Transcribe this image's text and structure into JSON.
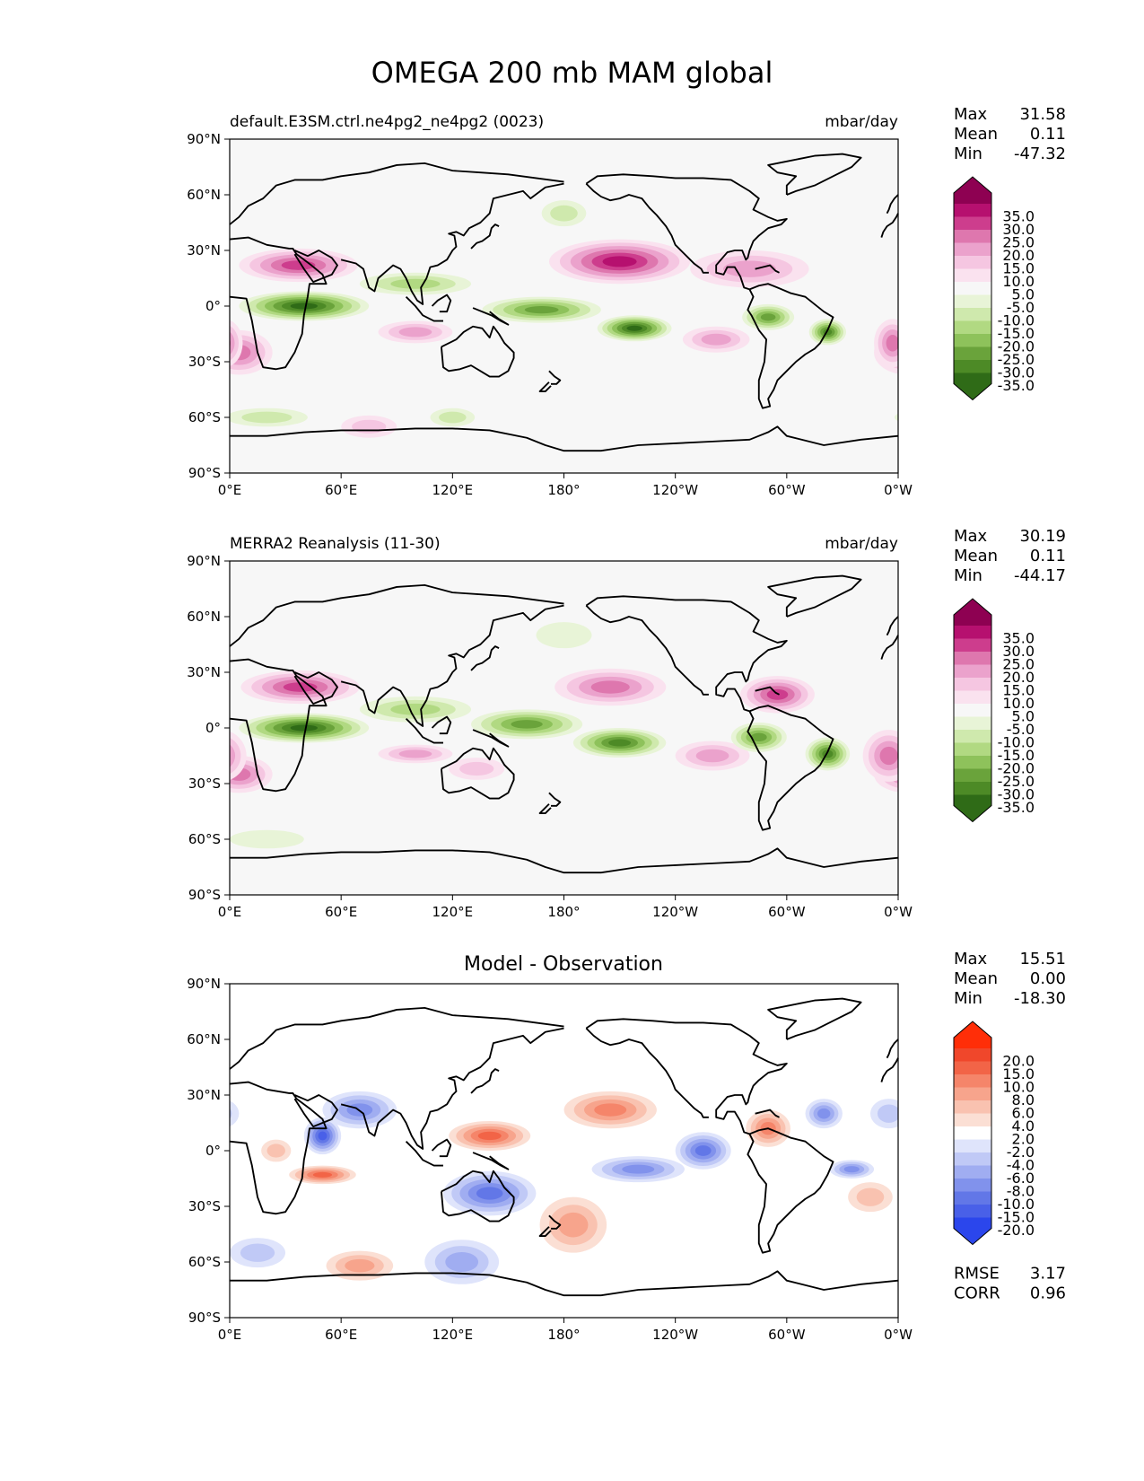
{
  "title": "OMEGA 200 mb MAM global",
  "xticks": [
    "0°E",
    "60°E",
    "120°E",
    "180°",
    "120°W",
    "60°W",
    "0°W"
  ],
  "yticks": [
    "90°N",
    "60°N",
    "30°N",
    "0°",
    "30°S",
    "60°S",
    "90°S"
  ],
  "panels": [
    {
      "id": "model",
      "left_title": "default.E3SM.ctrl.ne4pg2_ne4pg2 (0023)",
      "center_title": "",
      "units": "mbar/day",
      "stats": [
        {
          "label": "Max",
          "value": "31.58"
        },
        {
          "label": "Mean",
          "value": "0.11"
        },
        {
          "label": "Min",
          "value": "-47.32"
        }
      ],
      "extra_stats": [],
      "colorbar": {
        "labels": [
          "35.0",
          "30.0",
          "25.0",
          "20.0",
          "15.0",
          "10.0",
          "5.0",
          "-5.0",
          "-10.0",
          "-15.0",
          "-20.0",
          "-25.0",
          "-30.0",
          "-35.0"
        ],
        "colors": [
          "#8e0152",
          "#b6106f",
          "#cd3d8d",
          "#de77ae",
          "#eba2cc",
          "#f5c6e1",
          "#fae2ef",
          "#f7f7f7",
          "#e8f4d7",
          "#cfe9ad",
          "#b1d982",
          "#8ec25b",
          "#6aa33b",
          "#4d8a26",
          "#2f6b17",
          "#276419"
        ]
      },
      "features": [
        {
          "type": "pos",
          "lon": 37,
          "lat": 22,
          "rlon": 32,
          "rlat": 9,
          "value": 25
        },
        {
          "type": "pos",
          "lon": 100,
          "lat": -14,
          "rlon": 20,
          "rlat": 6,
          "value": 18
        },
        {
          "type": "pos",
          "lon": 210,
          "lat": 24,
          "rlon": 38,
          "rlat": 12,
          "value": 30
        },
        {
          "type": "pos",
          "lon": 280,
          "lat": 20,
          "rlon": 32,
          "rlat": 10,
          "value": 15
        },
        {
          "type": "pos",
          "lon": 5,
          "lat": -25,
          "rlon": 18,
          "rlat": 12,
          "value": 20
        },
        {
          "type": "pos",
          "lon": 262,
          "lat": -18,
          "rlon": 18,
          "rlat": 7,
          "value": 18
        },
        {
          "type": "pos",
          "lon": 357,
          "lat": -20,
          "rlon": 10,
          "rlat": 13,
          "value": 20
        },
        {
          "type": "pos",
          "lon": 75,
          "lat": -65,
          "rlon": 15,
          "rlat": 6,
          "value": 10
        },
        {
          "type": "neg",
          "lon": 40,
          "lat": 0,
          "rlon": 35,
          "rlat": 8,
          "value": -38
        },
        {
          "type": "neg",
          "lon": 100,
          "lat": 12,
          "rlon": 30,
          "rlat": 6,
          "value": -15
        },
        {
          "type": "neg",
          "lon": 168,
          "lat": -2,
          "rlon": 32,
          "rlat": 7,
          "value": -25
        },
        {
          "type": "neg",
          "lon": 218,
          "lat": -12,
          "rlon": 20,
          "rlat": 7,
          "value": -35
        },
        {
          "type": "neg",
          "lon": 290,
          "lat": -6,
          "rlon": 14,
          "rlat": 7,
          "value": -25
        },
        {
          "type": "neg",
          "lon": 322,
          "lat": -14,
          "rlon": 10,
          "rlat": 7,
          "value": -30
        },
        {
          "type": "neg",
          "lon": 20,
          "lat": -60,
          "rlon": 22,
          "rlat": 5,
          "value": -10
        },
        {
          "type": "neg",
          "lon": 120,
          "lat": -60,
          "rlon": 12,
          "rlat": 5,
          "value": -10
        },
        {
          "type": "neg",
          "lon": 180,
          "lat": 50,
          "rlon": 12,
          "rlat": 7,
          "value": -10
        }
      ]
    },
    {
      "id": "obs",
      "left_title": "MERRA2 Reanalysis (11-30)",
      "center_title": "",
      "units": "mbar/day",
      "stats": [
        {
          "label": "Max",
          "value": "30.19"
        },
        {
          "label": "Mean",
          "value": "0.11"
        },
        {
          "label": "Min",
          "value": "-44.17"
        }
      ],
      "extra_stats": [],
      "colorbar": {
        "labels": [
          "35.0",
          "30.0",
          "25.0",
          "20.0",
          "15.0",
          "10.0",
          "5.0",
          "-5.0",
          "-10.0",
          "-15.0",
          "-20.0",
          "-25.0",
          "-30.0",
          "-35.0"
        ],
        "colors": [
          "#8e0152",
          "#b6106f",
          "#cd3d8d",
          "#de77ae",
          "#eba2cc",
          "#f5c6e1",
          "#fae2ef",
          "#f7f7f7",
          "#e8f4d7",
          "#cfe9ad",
          "#b1d982",
          "#8ec25b",
          "#6aa33b",
          "#4d8a26",
          "#2f6b17",
          "#276419"
        ]
      },
      "features": [
        {
          "type": "pos",
          "lon": 38,
          "lat": 22,
          "rlon": 32,
          "rlat": 9,
          "value": 25
        },
        {
          "type": "pos",
          "lon": 100,
          "lat": -14,
          "rlon": 20,
          "rlat": 5,
          "value": 18
        },
        {
          "type": "pos",
          "lon": 205,
          "lat": 22,
          "rlon": 30,
          "rlat": 10,
          "value": 22
        },
        {
          "type": "pos",
          "lon": 295,
          "lat": 18,
          "rlon": 20,
          "rlat": 10,
          "value": 25
        },
        {
          "type": "pos",
          "lon": 5,
          "lat": -25,
          "rlon": 18,
          "rlat": 10,
          "value": 22
        },
        {
          "type": "pos",
          "lon": 260,
          "lat": -15,
          "rlon": 20,
          "rlat": 8,
          "value": 18
        },
        {
          "type": "pos",
          "lon": 355,
          "lat": -15,
          "rlon": 14,
          "rlat": 14,
          "value": 20
        },
        {
          "type": "pos",
          "lon": 133,
          "lat": -22,
          "rlon": 15,
          "rlat": 6,
          "value": 10
        },
        {
          "type": "neg",
          "lon": 40,
          "lat": 0,
          "rlon": 35,
          "rlat": 8,
          "value": -38
        },
        {
          "type": "neg",
          "lon": 100,
          "lat": 10,
          "rlon": 30,
          "rlat": 7,
          "value": -15
        },
        {
          "type": "neg",
          "lon": 160,
          "lat": 2,
          "rlon": 30,
          "rlat": 8,
          "value": -25
        },
        {
          "type": "neg",
          "lon": 210,
          "lat": -8,
          "rlon": 25,
          "rlat": 8,
          "value": -33
        },
        {
          "type": "neg",
          "lon": 285,
          "lat": -5,
          "rlon": 15,
          "rlat": 8,
          "value": -25
        },
        {
          "type": "neg",
          "lon": 322,
          "lat": -14,
          "rlon": 12,
          "rlat": 9,
          "value": -30
        },
        {
          "type": "neg",
          "lon": 20,
          "lat": -60,
          "rlon": 20,
          "rlat": 5,
          "value": -8
        },
        {
          "type": "neg",
          "lon": 180,
          "lat": 50,
          "rlon": 15,
          "rlat": 7,
          "value": -8
        }
      ]
    },
    {
      "id": "diff",
      "left_title": "",
      "center_title": "Model - Observation",
      "units": "",
      "stats": [
        {
          "label": "Max",
          "value": "15.51"
        },
        {
          "label": "Mean",
          "value": "0.00"
        },
        {
          "label": "Min",
          "value": "-18.30"
        }
      ],
      "extra_stats": [
        {
          "label": "RMSE",
          "value": "3.17"
        },
        {
          "label": "CORR",
          "value": "0.96"
        }
      ],
      "colorbar": {
        "labels": [
          "20.0",
          "15.0",
          "10.0",
          "8.0",
          "6.0",
          "4.0",
          "2.0",
          "-2.0",
          "-4.0",
          "-6.0",
          "-8.0",
          "-10.0",
          "-15.0",
          "-20.0"
        ],
        "colors": [
          "#ff2e08",
          "#f0472b",
          "#f26447",
          "#f5856a",
          "#f7a48c",
          "#f9c2b0",
          "#fbdfd4",
          "#ffffff",
          "#dfe4fb",
          "#c0c9f6",
          "#a0adf1",
          "#8192ec",
          "#6277e7",
          "#4960e8",
          "#2b46ec",
          "#0c2cf2"
        ]
      },
      "features": [
        {
          "type": "pos",
          "lon": 140,
          "lat": 8,
          "rlon": 22,
          "rlat": 8,
          "value": 12
        },
        {
          "type": "pos",
          "lon": 205,
          "lat": 22,
          "rlon": 25,
          "rlat": 10,
          "value": 8
        },
        {
          "type": "pos",
          "lon": 50,
          "lat": -13,
          "rlon": 18,
          "rlat": 5,
          "value": 12
        },
        {
          "type": "pos",
          "lon": 185,
          "lat": -40,
          "rlon": 18,
          "rlat": 15,
          "value": 6
        },
        {
          "type": "pos",
          "lon": 70,
          "lat": -62,
          "rlon": 18,
          "rlat": 8,
          "value": 6
        },
        {
          "type": "pos",
          "lon": 290,
          "lat": 12,
          "rlon": 12,
          "rlat": 10,
          "value": 8
        },
        {
          "type": "pos",
          "lon": 25,
          "lat": 0,
          "rlon": 8,
          "rlat": 6,
          "value": 4
        },
        {
          "type": "pos",
          "lon": 345,
          "lat": -25,
          "rlon": 12,
          "rlat": 8,
          "value": 4
        },
        {
          "type": "neg",
          "lon": 50,
          "lat": 8,
          "rlon": 10,
          "rlat": 10,
          "value": -15
        },
        {
          "type": "neg",
          "lon": 70,
          "lat": 22,
          "rlon": 20,
          "rlat": 10,
          "value": -8
        },
        {
          "type": "neg",
          "lon": 140,
          "lat": -23,
          "rlon": 25,
          "rlat": 12,
          "value": -10
        },
        {
          "type": "neg",
          "lon": 255,
          "lat": 0,
          "rlon": 15,
          "rlat": 10,
          "value": -10
        },
        {
          "type": "neg",
          "lon": 220,
          "lat": -10,
          "rlon": 25,
          "rlat": 7,
          "value": -8
        },
        {
          "type": "neg",
          "lon": 320,
          "lat": 20,
          "rlon": 10,
          "rlat": 8,
          "value": -8
        },
        {
          "type": "neg",
          "lon": 125,
          "lat": -60,
          "rlon": 20,
          "rlat": 12,
          "value": -6
        },
        {
          "type": "neg",
          "lon": 335,
          "lat": -10,
          "rlon": 12,
          "rlat": 5,
          "value": -8
        },
        {
          "type": "neg",
          "lon": 15,
          "lat": -55,
          "rlon": 15,
          "rlat": 8,
          "value": -4
        },
        {
          "type": "neg",
          "lon": 355,
          "lat": 20,
          "rlon": 10,
          "rlat": 8,
          "value": -4
        }
      ]
    }
  ]
}
